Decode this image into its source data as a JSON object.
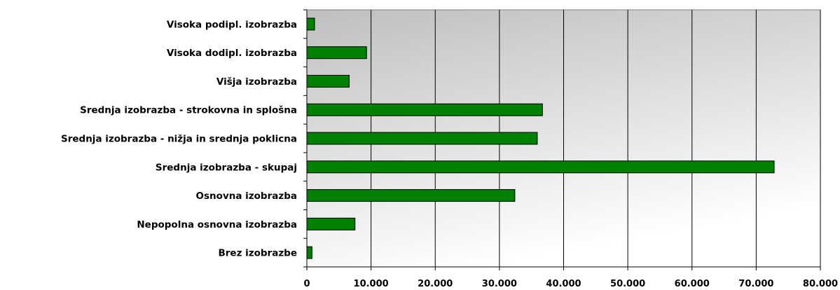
{
  "chart_data": {
    "type": "bar",
    "orientation": "horizontal",
    "categories": [
      "Visoka podipl. izobrazba",
      "Visoka  dodipl. izobrazba",
      "Višja izobrazba",
      "Srednja izobrazba - strokovna in splošna",
      "Srednja izobrazba - nižja  in srednja poklicna",
      "Srednja izobrazba - skupaj",
      "Osnovna  izobrazba",
      "Nepopolna osnovna izobrazba",
      "Brez izobrazbe"
    ],
    "values": [
      1200,
      9300,
      6600,
      36700,
      35900,
      72800,
      32400,
      7500,
      800
    ],
    "xlim": [
      0,
      80000
    ],
    "xticks": [
      0,
      10000,
      20000,
      30000,
      40000,
      50000,
      60000,
      70000,
      80000
    ],
    "xtick_labels": [
      "0",
      "10.000",
      "20.000",
      "30.000",
      "40.000",
      "50.000",
      "60.000",
      "70.000",
      "80.000"
    ],
    "grid": true,
    "title": "",
    "xlabel": "",
    "ylabel": "",
    "colors": {
      "bar_fill": "#008000",
      "bar_stroke": "#000000",
      "plot_bg_top": "#bfbfbf",
      "plot_bg_bottom": "#ffffff",
      "gridline": "#000000"
    }
  }
}
